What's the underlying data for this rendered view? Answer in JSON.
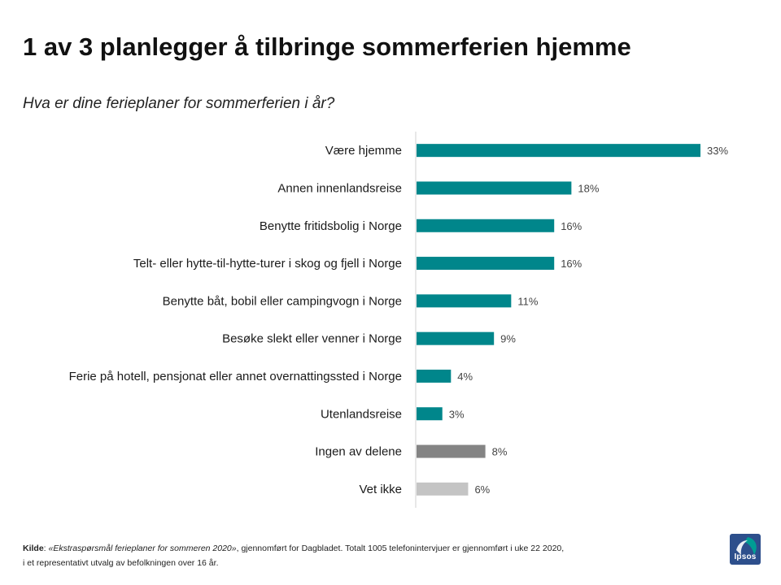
{
  "header": {
    "title": "1 av 3 planlegger å tilbringe sommerferien hjemme",
    "subtitle": "Hva er dine ferieplaner for sommerferien i år?"
  },
  "chart_data": {
    "type": "bar",
    "orientation": "horizontal",
    "title": "",
    "xlabel": "",
    "ylabel": "",
    "xlim": [
      0,
      33
    ],
    "grid": false,
    "categories": [
      "Være hjemme",
      "Annen innenlandsreise",
      "Benytte fritidsbolig i Norge",
      "Telt- eller hytte-til-hytte-turer i skog og fjell i Norge",
      "Benytte båt, bobil eller campingvogn i Norge",
      "Besøke slekt eller venner i Norge",
      "Ferie på hotell, pensjonat eller annet overnattingssted i Norge",
      "Utenlandsreise",
      "Ingen av delene",
      "Vet ikke"
    ],
    "values": [
      33,
      18,
      16,
      16,
      11,
      9,
      4,
      3,
      8,
      6
    ],
    "value_labels": [
      "33%",
      "18%",
      "16%",
      "16%",
      "11%",
      "9%",
      "4%",
      "3%",
      "8%",
      "6%"
    ],
    "bar_colors": [
      "#00868b",
      "#00868b",
      "#00868b",
      "#00868b",
      "#00868b",
      "#00868b",
      "#00868b",
      "#00868b",
      "#848484",
      "#c4c4c4"
    ]
  },
  "footer": {
    "kilde_label": "Kilde",
    "kilde_source": "«Ekstraspørsmål ferieplaner for sommeren 2020»",
    "line1_rest": ", gjennomført for Dagbladet. Totalt 1005 telefonintervjuer er gjennomført i uke 22 2020,",
    "line2": "i et representativt utvalg av befolkningen over 16 år."
  },
  "logo": {
    "text": "Ipsos"
  },
  "colors": {
    "teal": "#00868b",
    "dark_gray": "#848484",
    "light_gray": "#c4c4c4",
    "logo_blue": "#2d4f8c",
    "logo_green": "#009d94"
  }
}
